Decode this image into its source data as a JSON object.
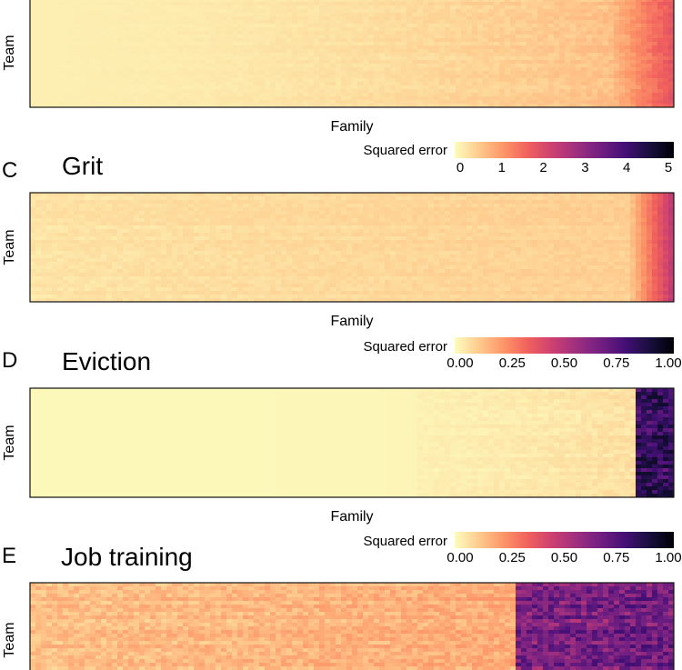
{
  "colors": {
    "scale": [
      "#fcfdbf",
      "#feca8d",
      "#fd9668",
      "#f1605d",
      "#cd4071",
      "#9e2f7f",
      "#721f81",
      "#440f76",
      "#180f3d",
      "#000004"
    ],
    "frame": "#111111"
  },
  "chart_data": [
    {
      "type": "heatmap",
      "panel_letter": "",
      "title": "",
      "xlabel": "Family",
      "ylabel": "Team",
      "legend": null,
      "value_pattern": "families sorted by mean squared error; low error (near 0) on the left rising gradually toward the right edge where errors reach the top of the scale"
    },
    {
      "type": "heatmap",
      "panel_letter": "C",
      "title": "Grit",
      "xlabel": "Family",
      "ylabel": "Team",
      "legend": {
        "title": "Squared error",
        "ticks": [
          "0",
          "1",
          "2",
          "3",
          "4",
          "5"
        ],
        "range": [
          0,
          5
        ]
      },
      "value_pattern": "nearly uniform low error (about 0-0.5) across most families, sharply rising to about 5 in the last few percent of families"
    },
    {
      "type": "heatmap",
      "panel_letter": "D",
      "title": "Eviction",
      "xlabel": "Family",
      "ylabel": "Team",
      "legend": {
        "title": "Squared error",
        "ticks": [
          "0.00",
          "0.25",
          "0.50",
          "0.75",
          "1.00"
        ],
        "range": [
          0,
          1
        ]
      },
      "value_pattern": "near 0 for about 94% of families; a block of families at the right edge with squared error near 1.00 for most teams"
    },
    {
      "type": "heatmap",
      "panel_letter": "E",
      "title": "Job training",
      "xlabel": "",
      "ylabel": "Team",
      "legend": {
        "title": "Squared error",
        "ticks": [
          "0.00",
          "0.25",
          "0.50",
          "0.75",
          "1.00"
        ],
        "range": [
          0,
          1
        ]
      },
      "value_pattern": "about 0.05-0.25 for the left three quarters of families; a block on the right (about the last quarter) at about 0.6-0.8"
    }
  ]
}
